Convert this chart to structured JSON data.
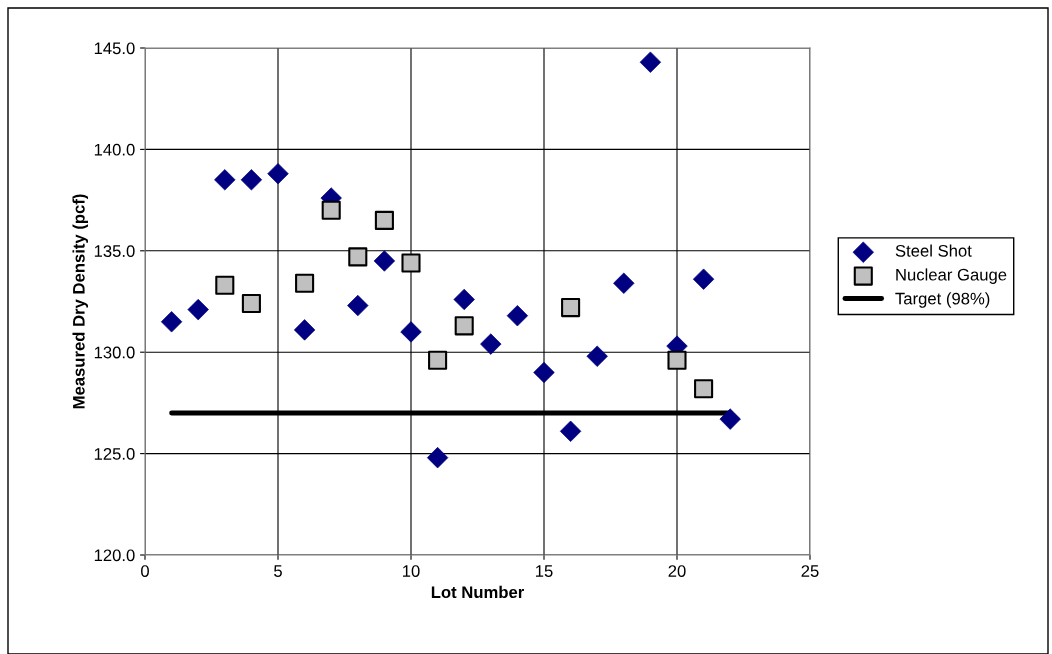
{
  "chart_data": {
    "type": "scatter",
    "xlabel": "Lot Number",
    "ylabel": "Measured Dry Density (pcf)",
    "xlim": [
      0,
      25
    ],
    "xticks": [
      0,
      5,
      10,
      15,
      20,
      25
    ],
    "ylim": [
      120,
      145
    ],
    "yticks": [
      {
        "value": 120,
        "label": "120.0"
      },
      {
        "value": 125,
        "label": "125.0"
      },
      {
        "value": 130,
        "label": "130.0"
      },
      {
        "value": 135,
        "label": "135.0"
      },
      {
        "value": 140,
        "label": "140.0"
      },
      {
        "value": 145,
        "label": "145.0"
      }
    ],
    "grid": true,
    "legend": "right",
    "series": [
      {
        "name": "Steel Shot",
        "marker": "diamond",
        "color": "#000080",
        "x": [
          1,
          2,
          3,
          4,
          5,
          6,
          7,
          8,
          9,
          10,
          11,
          12,
          13,
          14,
          15,
          16,
          17,
          18,
          19,
          20,
          21,
          22
        ],
        "values": [
          131.5,
          132.1,
          138.5,
          138.5,
          138.8,
          131.1,
          137.6,
          132.3,
          134.5,
          131.0,
          124.8,
          132.6,
          130.4,
          131.8,
          129.0,
          126.1,
          129.8,
          133.4,
          144.3,
          130.3,
          133.6,
          126.7
        ]
      },
      {
        "name": "Nuclear Gauge",
        "marker": "square",
        "color": "#c0c0c0",
        "x": [
          3,
          4,
          6,
          7,
          8,
          9,
          10,
          11,
          12,
          16,
          20,
          21
        ],
        "values": [
          133.3,
          132.4,
          133.4,
          137.0,
          134.7,
          136.5,
          134.4,
          129.6,
          131.3,
          132.2,
          129.6,
          128.2
        ]
      },
      {
        "name": "Target (98%)",
        "type": "line",
        "marker": "none",
        "color": "#000000",
        "x": [
          1,
          22
        ],
        "values": [
          127.0,
          127.0
        ]
      }
    ]
  }
}
